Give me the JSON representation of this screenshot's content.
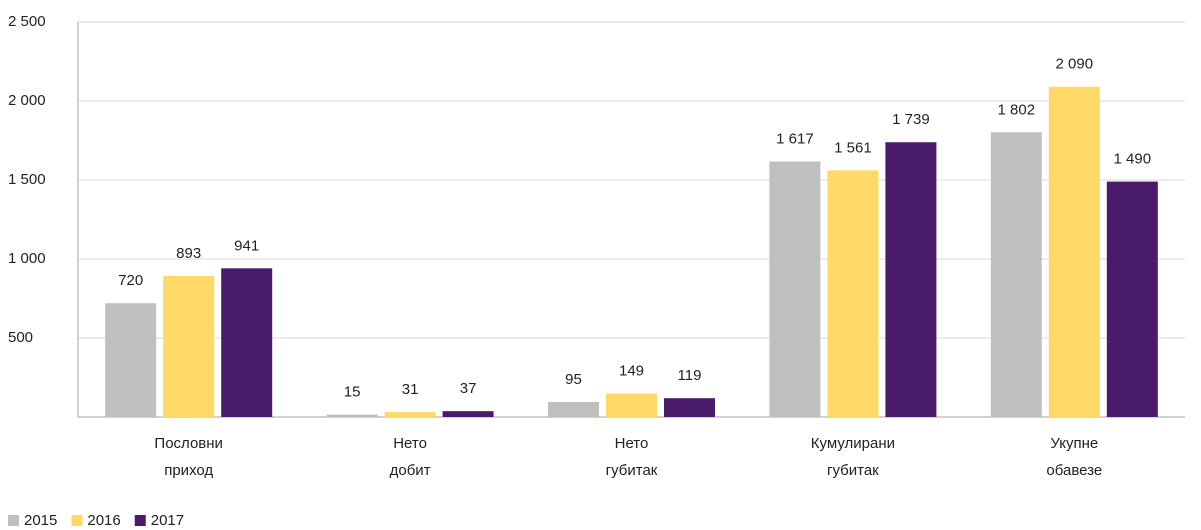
{
  "chart_data": {
    "type": "bar",
    "categories": [
      "Пословни приход",
      "Нето добит",
      "Нето губитак",
      "Кумулирани губитак",
      "Укупне обавезе"
    ],
    "series": [
      {
        "name": "2015",
        "color": "#bfbfbf",
        "values": [
          720,
          15,
          95,
          1617,
          1802
        ],
        "value_labels": [
          "720",
          "15",
          "95",
          "1 617",
          "1 802"
        ]
      },
      {
        "name": "2016",
        "color": "#ffd966",
        "values": [
          893,
          31,
          149,
          1561,
          2090
        ],
        "value_labels": [
          "893",
          "31",
          "149",
          "1 561",
          "2 090"
        ]
      },
      {
        "name": "2017",
        "color": "#4a1a6b",
        "values": [
          941,
          37,
          119,
          1739,
          1490
        ],
        "value_labels": [
          "941",
          "37",
          "119",
          "1 739",
          "1 490"
        ]
      }
    ],
    "ylim": [
      0,
      2500
    ],
    "yticks": [
      500,
      {
        "value": 1000,
        "label": "1 000"
      },
      {
        "value": 1500,
        "label": "1 500"
      },
      {
        "value": 2000,
        "label": "2 000"
      },
      {
        "value": 2500,
        "label": "2 500"
      }
    ],
    "grid": true,
    "legend": "bottom-left"
  }
}
